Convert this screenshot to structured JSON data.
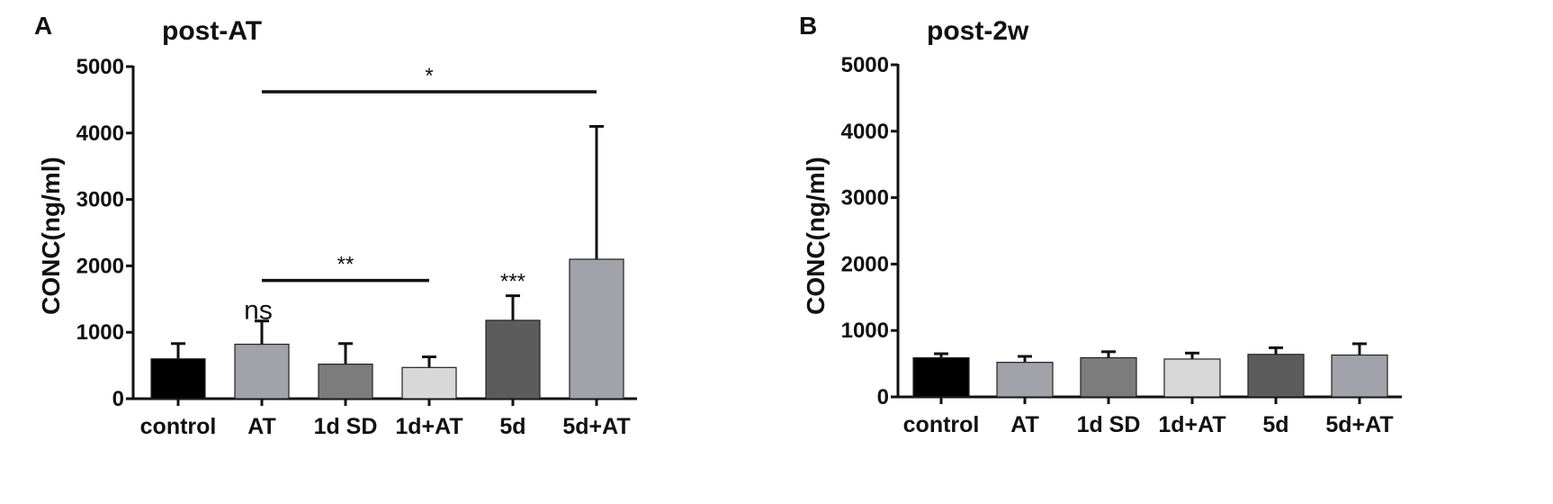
{
  "chart_data": [
    {
      "panel": "A",
      "type": "bar",
      "title": "post-AT",
      "xlabel": "",
      "ylabel": "CONC(ng/ml)",
      "ylim": [
        0,
        5000
      ],
      "yticks": [
        0,
        1000,
        2000,
        3000,
        4000,
        5000
      ],
      "grid": false,
      "categories": [
        "control",
        "AT",
        "1d SD",
        "1d+AT",
        "5d",
        "5d+AT"
      ],
      "values": [
        600,
        820,
        520,
        470,
        1180,
        2100
      ],
      "errors": [
        230,
        350,
        310,
        160,
        370,
        2000
      ],
      "colors": [
        "#000000",
        "#a2a2aa",
        "#7c7c7c",
        "#d8d8d8",
        "#5c5c5c",
        "#a2a2aa"
      ],
      "bar_annotations": [
        {
          "category": "AT",
          "text": "ns"
        },
        {
          "category": "5d",
          "text": "***"
        }
      ],
      "brackets": [
        {
          "from": "AT",
          "to": "5d+AT",
          "y": 4620,
          "text": "*"
        },
        {
          "from": "AT",
          "to": "1d+AT",
          "y": 1780,
          "text": "**"
        }
      ]
    },
    {
      "panel": "B",
      "type": "bar",
      "title": "post-2w",
      "xlabel": "",
      "ylabel": "CONC(ng/ml)",
      "ylim": [
        0,
        5000
      ],
      "yticks": [
        0,
        1000,
        2000,
        3000,
        4000,
        5000
      ],
      "grid": false,
      "categories": [
        "control",
        "AT",
        "1d SD",
        "1d+AT",
        "5d",
        "5d+AT"
      ],
      "values": [
        590,
        520,
        590,
        570,
        640,
        630
      ],
      "errors": [
        60,
        90,
        90,
        90,
        100,
        170
      ],
      "colors": [
        "#000000",
        "#a2a2aa",
        "#7c7c7c",
        "#d8d8d8",
        "#5c5c5c",
        "#a2a2aa"
      ],
      "bar_annotations": [],
      "brackets": []
    }
  ]
}
